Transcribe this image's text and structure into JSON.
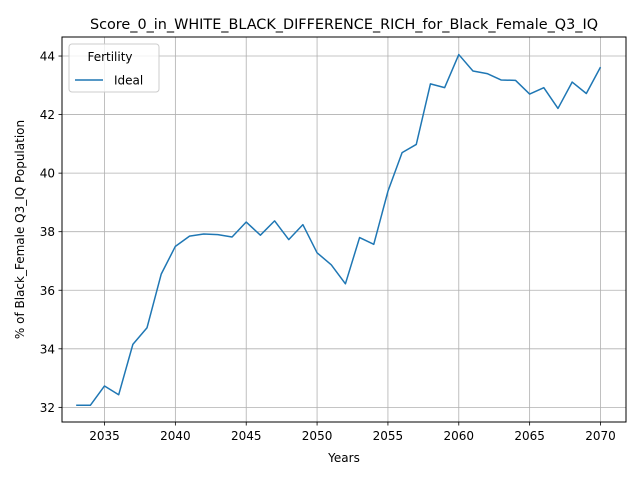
{
  "chart_data": {
    "type": "line",
    "title": "Score_0_in_WHITE_BLACK_DIFFERENCE_RICH_for_Black_Female_Q3_IQ",
    "xlabel": "Years",
    "ylabel": "% of Black_Female Q3_IQ Population",
    "xlim": [
      2032,
      2071.8
    ],
    "ylim": [
      31.5,
      44.65
    ],
    "xticks": [
      2035,
      2040,
      2045,
      2050,
      2055,
      2060,
      2065,
      2070
    ],
    "yticks": [
      32,
      34,
      36,
      38,
      40,
      42,
      44
    ],
    "grid": true,
    "legend": {
      "title": "Fertility",
      "position": "top-left"
    },
    "series": [
      {
        "name": "Ideal",
        "color": "#1f77b4",
        "x": [
          2033,
          2034,
          2035,
          2036,
          2037,
          2038,
          2039,
          2040,
          2041,
          2042,
          2043,
          2044,
          2045,
          2046,
          2047,
          2048,
          2049,
          2050,
          2051,
          2052,
          2053,
          2054,
          2055,
          2056,
          2057,
          2058,
          2059,
          2060,
          2061,
          2062,
          2063,
          2064,
          2065,
          2066,
          2067,
          2068,
          2069,
          2070
        ],
        "y": [
          32.07,
          32.07,
          32.73,
          32.43,
          34.15,
          34.72,
          36.55,
          37.5,
          37.85,
          37.92,
          37.9,
          37.82,
          38.33,
          37.88,
          38.37,
          37.73,
          38.24,
          37.28,
          36.87,
          36.22,
          37.8,
          37.57,
          39.38,
          40.7,
          40.98,
          43.05,
          42.92,
          44.05,
          43.49,
          43.4,
          43.18,
          43.17,
          42.7,
          42.92,
          42.21,
          43.11,
          42.72,
          43.62
        ]
      }
    ]
  }
}
